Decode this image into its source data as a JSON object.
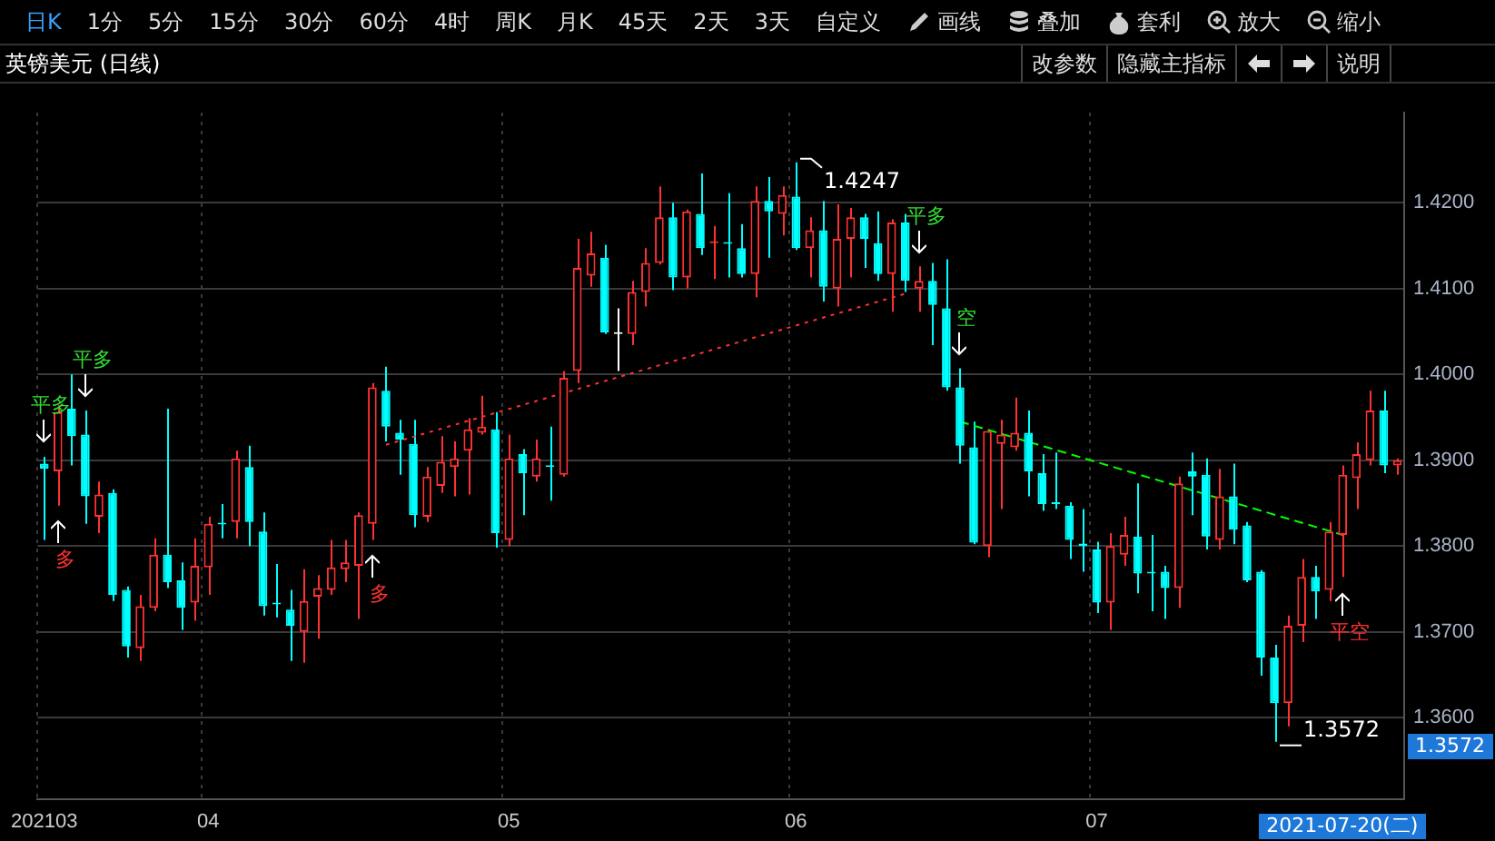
{
  "chart_data": {
    "type": "candlestick",
    "title": "英镑美元 (日线)",
    "categories": [
      "202103",
      null,
      null,
      null,
      null,
      null,
      null,
      null,
      null,
      null,
      null,
      null,
      "04",
      null,
      null,
      null,
      null,
      null,
      null,
      null,
      null,
      null,
      null,
      null,
      null,
      null,
      null,
      null,
      null,
      null,
      null,
      null,
      null,
      null,
      "05",
      null,
      null,
      null,
      null,
      null,
      null,
      null,
      null,
      null,
      null,
      null,
      null,
      null,
      null,
      null,
      null,
      null,
      null,
      null,
      null,
      "06",
      null,
      null,
      null,
      null,
      null,
      null,
      null,
      null,
      null,
      null,
      null,
      null,
      null,
      null,
      null,
      null,
      null,
      null,
      null,
      null,
      null,
      "07",
      null,
      null,
      null,
      null,
      null,
      null,
      null,
      null,
      null,
      null,
      null,
      null,
      null,
      null,
      null,
      null,
      null,
      null,
      null,
      null,
      null,
      null
    ],
    "ohlc": [
      [
        1.3896,
        1.3904,
        1.3807,
        1.389
      ],
      [
        1.3887,
        1.3964,
        1.3847,
        1.3956
      ],
      [
        1.396,
        1.4,
        1.3894,
        1.3928
      ],
      [
        1.393,
        1.3958,
        1.3826,
        1.3858
      ],
      [
        1.3834,
        1.3875,
        1.3815,
        1.386
      ],
      [
        1.3862,
        1.3866,
        1.3736,
        1.3743
      ],
      [
        1.3749,
        1.3753,
        1.367,
        1.3683
      ],
      [
        1.3681,
        1.3743,
        1.3666,
        1.373
      ],
      [
        1.3728,
        1.3809,
        1.3724,
        1.379
      ],
      [
        1.379,
        1.396,
        1.3751,
        1.3758
      ],
      [
        1.376,
        1.3781,
        1.3702,
        1.3728
      ],
      [
        1.3734,
        1.3809,
        1.3713,
        1.3777
      ],
      [
        1.3775,
        1.3834,
        1.3743,
        1.3826
      ],
      [
        1.3826,
        1.3849,
        1.3809,
        1.3825
      ],
      [
        1.3828,
        1.3911,
        1.3809,
        1.3902
      ],
      [
        1.3892,
        1.3917,
        1.38,
        1.3828
      ],
      [
        1.3817,
        1.3839,
        1.3719,
        1.373
      ],
      [
        1.3733,
        1.3779,
        1.3717,
        1.3732
      ],
      [
        1.3726,
        1.3749,
        1.3666,
        1.3707
      ],
      [
        1.37,
        1.3773,
        1.3664,
        1.3736
      ],
      [
        1.3741,
        1.3766,
        1.3692,
        1.3751
      ],
      [
        1.3749,
        1.3807,
        1.3743,
        1.3775
      ],
      [
        1.3773,
        1.3807,
        1.3758,
        1.3781
      ],
      [
        1.3777,
        1.3839,
        1.3715,
        1.3836
      ],
      [
        1.3826,
        1.399,
        1.3807,
        1.3985
      ],
      [
        1.3981,
        1.4009,
        1.3922,
        1.3939
      ],
      [
        1.3932,
        1.3947,
        1.3883,
        1.3924
      ],
      [
        1.3919,
        1.3947,
        1.3822,
        1.3836
      ],
      [
        1.3834,
        1.3892,
        1.3828,
        1.3881
      ],
      [
        1.387,
        1.3928,
        1.3862,
        1.3898
      ],
      [
        1.3892,
        1.3922,
        1.3858,
        1.3902
      ],
      [
        1.3911,
        1.3949,
        1.386,
        1.3936
      ],
      [
        1.3932,
        1.3975,
        1.393,
        1.3939
      ],
      [
        1.3936,
        1.3956,
        1.3798,
        1.3815
      ],
      [
        1.3807,
        1.393,
        1.38,
        1.3902
      ],
      [
        1.3907,
        1.3913,
        1.3836,
        1.3885
      ],
      [
        1.3881,
        1.3924,
        1.3875,
        1.3902
      ],
      [
        1.3894,
        1.3939,
        1.3853,
        1.3892
      ],
      [
        1.3883,
        1.4004,
        1.3881,
        1.3996
      ],
      [
        1.4004,
        1.4158,
        1.399,
        1.4124
      ],
      [
        1.4115,
        1.4166,
        1.4102,
        1.4141
      ],
      [
        1.4136,
        1.4151,
        1.4047,
        1.4049
      ],
      [
        1.4047,
        1.4077,
        1.4004,
        1.4047
      ],
      [
        1.4047,
        1.4109,
        1.4034,
        1.4096
      ],
      [
        1.4096,
        1.4147,
        1.4079,
        1.413
      ],
      [
        1.413,
        1.4219,
        1.4128,
        1.4183
      ],
      [
        1.4183,
        1.42,
        1.4098,
        1.4113
      ],
      [
        1.4113,
        1.4192,
        1.41,
        1.419
      ],
      [
        1.4187,
        1.4234,
        1.4139,
        1.4147
      ],
      [
        1.4153,
        1.4173,
        1.4111,
        1.4154
      ],
      [
        1.4154,
        1.4211,
        1.4113,
        1.4152
      ],
      [
        1.4147,
        1.4175,
        1.4113,
        1.4117
      ],
      [
        1.4117,
        1.4219,
        1.409,
        1.4202
      ],
      [
        1.4202,
        1.423,
        1.4136,
        1.419
      ],
      [
        1.4187,
        1.4219,
        1.4162,
        1.4209
      ],
      [
        1.4207,
        1.4247,
        1.4145,
        1.4147
      ],
      [
        1.4147,
        1.4183,
        1.4113,
        1.4168
      ],
      [
        1.4168,
        1.4202,
        1.4085,
        1.4102
      ],
      [
        1.41,
        1.4198,
        1.4079,
        1.4158
      ],
      [
        1.4158,
        1.4194,
        1.4113,
        1.4183
      ],
      [
        1.4183,
        1.4187,
        1.4124,
        1.4158
      ],
      [
        1.4153,
        1.419,
        1.4109,
        1.4117
      ],
      [
        1.4117,
        1.4181,
        1.4073,
        1.4177
      ],
      [
        1.4177,
        1.4187,
        1.4096,
        1.4109
      ],
      [
        1.41,
        1.4126,
        1.4073,
        1.4109
      ],
      [
        1.4109,
        1.413,
        1.4034,
        1.4081
      ],
      [
        1.4077,
        1.4134,
        1.3981,
        1.3985
      ],
      [
        1.3985,
        1.4007,
        1.3896,
        1.3917
      ],
      [
        1.3915,
        1.3945,
        1.3802,
        1.3804
      ],
      [
        1.38,
        1.3936,
        1.3787,
        1.3934
      ],
      [
        1.3919,
        1.3947,
        1.3843,
        1.393
      ],
      [
        1.3915,
        1.3973,
        1.3911,
        1.3932
      ],
      [
        1.3932,
        1.3958,
        1.3858,
        1.3887
      ],
      [
        1.3885,
        1.3907,
        1.3841,
        1.3849
      ],
      [
        1.3851,
        1.3909,
        1.3843,
        1.3849
      ],
      [
        1.3847,
        1.3851,
        1.3785,
        1.3807
      ],
      [
        1.3803,
        1.3843,
        1.377,
        1.38
      ],
      [
        1.3796,
        1.3805,
        1.3722,
        1.3734
      ],
      [
        1.3734,
        1.3815,
        1.3702,
        1.38
      ],
      [
        1.379,
        1.3834,
        1.3777,
        1.3813
      ],
      [
        1.3811,
        1.3873,
        1.3745,
        1.3768
      ],
      [
        1.377,
        1.3813,
        1.3724,
        1.3768
      ],
      [
        1.377,
        1.3777,
        1.3715,
        1.3751
      ],
      [
        1.3751,
        1.3881,
        1.3728,
        1.3873
      ],
      [
        1.3887,
        1.3909,
        1.3836,
        1.3881
      ],
      [
        1.3883,
        1.3902,
        1.3796,
        1.3811
      ],
      [
        1.3807,
        1.389,
        1.3796,
        1.3858
      ],
      [
        1.3858,
        1.3896,
        1.3802,
        1.3819
      ],
      [
        1.3824,
        1.3828,
        1.3758,
        1.376
      ],
      [
        1.377,
        1.3772,
        1.3649,
        1.367
      ],
      [
        1.367,
        1.3685,
        1.3572,
        1.3617
      ],
      [
        1.3617,
        1.3719,
        1.359,
        1.3707
      ],
      [
        1.3707,
        1.3785,
        1.3688,
        1.3764
      ],
      [
        1.3764,
        1.3777,
        1.3715,
        1.3747
      ],
      [
        1.3749,
        1.3828,
        1.3736,
        1.3817
      ],
      [
        1.3813,
        1.3894,
        1.3764,
        1.3883
      ],
      [
        1.3879,
        1.3921,
        1.3843,
        1.3907
      ],
      [
        1.39,
        1.3981,
        1.3894,
        1.3958
      ],
      [
        1.3958,
        1.3981,
        1.3885,
        1.3894
      ],
      [
        1.3894,
        1.3902,
        1.3883,
        1.39
      ]
    ],
    "colors": [
      "#00ffff",
      "#ff3232",
      "#00ffff",
      "#00ffff",
      "#ff3232",
      "#00ffff",
      "#00ffff",
      "#ff3232",
      "#ff3232",
      "#00ffff",
      "#00ffff",
      "#ff3232",
      "#ff3232",
      "#00ffff",
      "#ff3232",
      "#00ffff",
      "#00ffff",
      "#00ffff",
      "#00ffff",
      "#ff3232",
      "#ff3232",
      "#ff3232",
      "#ff3232",
      "#ff3232",
      "#ff3232",
      "#00ffff",
      "#00ffff",
      "#00ffff",
      "#ff3232",
      "#ff3232",
      "#ff3232",
      "#ff3232",
      "#ff3232",
      "#00ffff",
      "#ff3232",
      "#00ffff",
      "#ff3232",
      "#00ffff",
      "#ff3232",
      "#ff3232",
      "#ff3232",
      "#00ffff",
      "#ffffff",
      "#ff3232",
      "#ff3232",
      "#ff3232",
      "#00ffff",
      "#ff3232",
      "#00ffff",
      "#ff3232",
      "#00ffff",
      "#00ffff",
      "#ff3232",
      "#00ffff",
      "#ff3232",
      "#00ffff",
      "#ff3232",
      "#00ffff",
      "#ff3232",
      "#ff3232",
      "#00ffff",
      "#00ffff",
      "#ff3232",
      "#00ffff",
      "#ff3232",
      "#00ffff",
      "#00ffff",
      "#00ffff",
      "#00ffff",
      "#ff3232",
      "#ff3232",
      "#ff3232",
      "#00ffff",
      "#00ffff",
      "#00ffff",
      "#00ffff",
      "#00ffff",
      "#00ffff",
      "#ff3232",
      "#ff3232",
      "#00ffff",
      "#00ffff",
      "#00ffff",
      "#ff3232",
      "#00ffff",
      "#00ffff",
      "#ff3232",
      "#00ffff",
      "#00ffff",
      "#00ffff",
      "#00ffff",
      "#ff3232",
      "#ff3232",
      "#00ffff",
      "#ff3232",
      "#ff3232",
      "#ff3232",
      "#ff3232",
      "#00ffff",
      "#ff3232"
    ],
    "series": [
      {
        "type": "line",
        "color": "#ff3232",
        "line_style": "dotted",
        "values": [
          null,
          null,
          null,
          null,
          null,
          null,
          null,
          null,
          null,
          null,
          null,
          null,
          null,
          null,
          null,
          null,
          null,
          null,
          null,
          null,
          null,
          null,
          null,
          null,
          null,
          1.3918,
          null,
          null,
          null,
          null,
          null,
          null,
          null,
          null,
          null,
          null,
          null,
          null,
          null,
          null,
          null,
          null,
          null,
          null,
          null,
          null,
          null,
          null,
          null,
          null,
          null,
          null,
          null,
          null,
          null,
          null,
          null,
          null,
          null,
          null,
          null,
          null,
          null,
          1.4094,
          null,
          null,
          null,
          null,
          null,
          null,
          null,
          null,
          null,
          null,
          null,
          null,
          null,
          null,
          null,
          null,
          null,
          null,
          null,
          null,
          null,
          null,
          null,
          null,
          null,
          null,
          null,
          null,
          null,
          null,
          null,
          null,
          null,
          null,
          null,
          null
        ]
      },
      {
        "type": "line",
        "color": "#00ff00",
        "line_style": "dashed",
        "values": [
          null,
          null,
          null,
          null,
          null,
          null,
          null,
          null,
          null,
          null,
          null,
          null,
          null,
          null,
          null,
          null,
          null,
          null,
          null,
          null,
          null,
          null,
          null,
          null,
          null,
          null,
          null,
          null,
          null,
          null,
          null,
          null,
          null,
          null,
          null,
          null,
          null,
          null,
          null,
          null,
          null,
          null,
          null,
          null,
          null,
          null,
          null,
          null,
          null,
          null,
          null,
          null,
          null,
          null,
          null,
          null,
          null,
          null,
          null,
          null,
          null,
          null,
          null,
          null,
          null,
          null,
          null,
          1.3945,
          null,
          null,
          null,
          null,
          null,
          null,
          null,
          null,
          null,
          null,
          null,
          null,
          null,
          null,
          null,
          null,
          null,
          null,
          null,
          null,
          null,
          null,
          null,
          null,
          null,
          null,
          null,
          1.3813,
          null,
          null,
          null,
          null
        ]
      }
    ],
    "ylim": [
      1.3505,
      1.4305
    ],
    "yticks": [
      {
        "value": 1.36,
        "label": "1.3600"
      },
      {
        "value": 1.37,
        "label": "1.3700"
      },
      {
        "value": 1.38,
        "label": "1.3800"
      },
      {
        "value": 1.39,
        "label": "1.3900"
      },
      {
        "value": 1.4,
        "label": "1.4000"
      },
      {
        "value": 1.41,
        "label": "1.4100"
      },
      {
        "value": 1.42,
        "label": "1.4200"
      }
    ],
    "grid": true,
    "annotations": [
      "日K",
      "1分",
      "5分",
      "15分",
      "30分",
      "60分",
      "4时",
      "周K",
      "月K",
      "45天",
      "2天",
      "3天",
      "自定义",
      "画线",
      "叠加",
      "套利",
      "放大",
      "缩小",
      "改参数",
      "隐藏主指标",
      "说明",
      "平多",
      "多",
      "平多",
      "多",
      "平多",
      "空",
      "平空",
      "1.4247",
      "1.3572",
      "2021-07-20(二)",
      "1.3572"
    ]
  }
}
